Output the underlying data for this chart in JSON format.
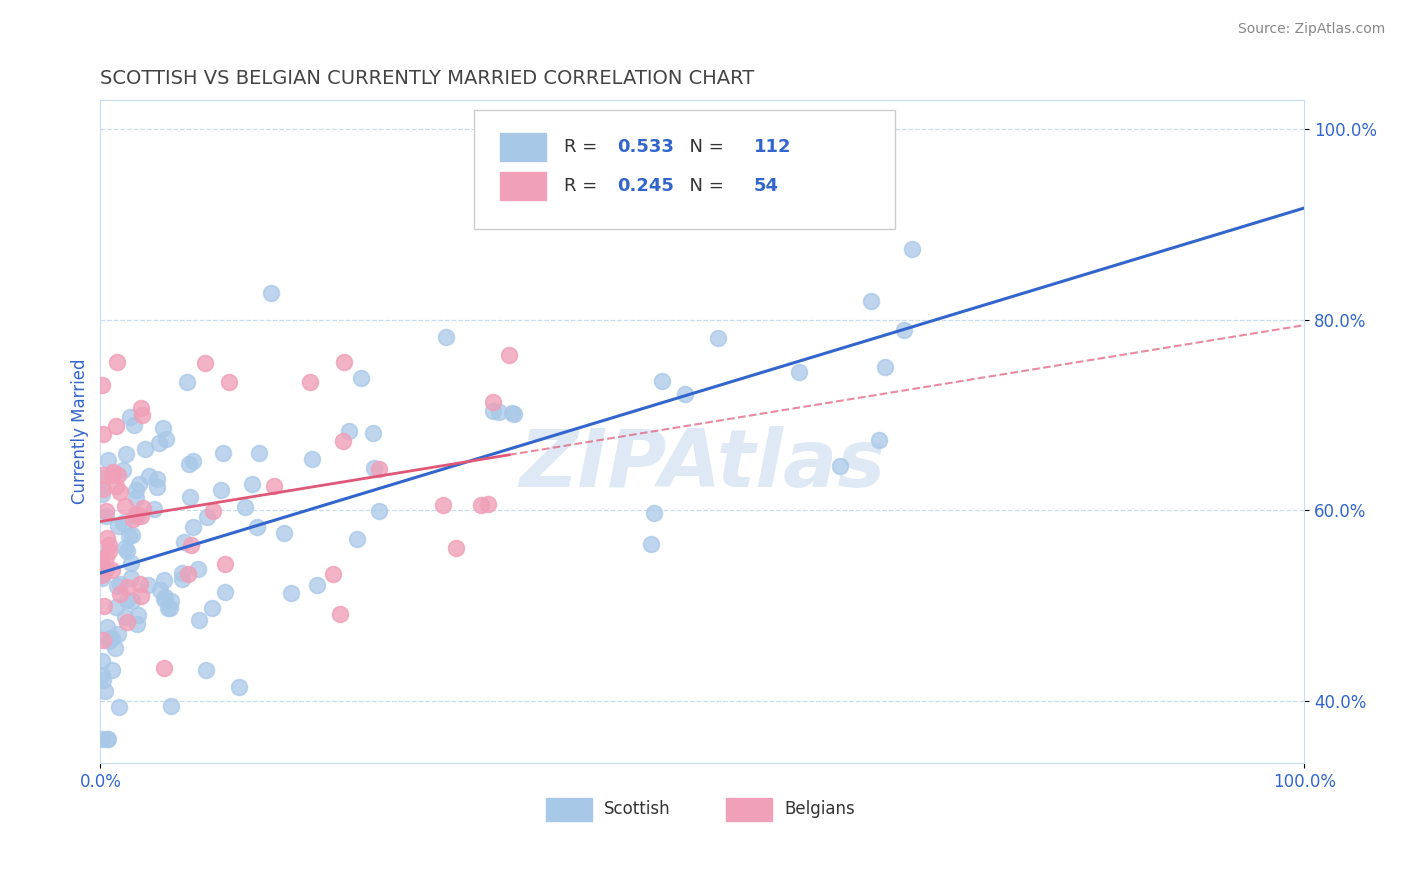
{
  "title": "SCOTTISH VS BELGIAN CURRENTLY MARRIED CORRELATION CHART",
  "source": "Source: ZipAtlas.com",
  "ylabel": "Currently Married",
  "x_min": 0.0,
  "x_max": 1.0,
  "y_min": 0.335,
  "y_max": 1.03,
  "watermark": "ZIPAtlas",
  "scottish_R": 0.533,
  "scottish_N": 112,
  "belgian_R": 0.245,
  "belgian_N": 54,
  "scottish_color": "#a8c8e8",
  "belgian_color": "#f0a0b8",
  "blue_line_color": "#3366cc",
  "pink_line_color": "#e05878",
  "title_color": "#444444",
  "axis_tick_color": "#3366cc",
  "ytick_labels": [
    "40.0%",
    "60.0%",
    "80.0%",
    "100.0%"
  ],
  "ytick_values": [
    0.4,
    0.6,
    0.8,
    1.0
  ],
  "xtick_labels": [
    "0.0%",
    "100.0%"
  ],
  "xtick_values": [
    0.0,
    1.0
  ],
  "grid_color": "#c8ddf0",
  "background_color": "#ffffff",
  "scottish_seed": 12,
  "belgian_seed": 99
}
